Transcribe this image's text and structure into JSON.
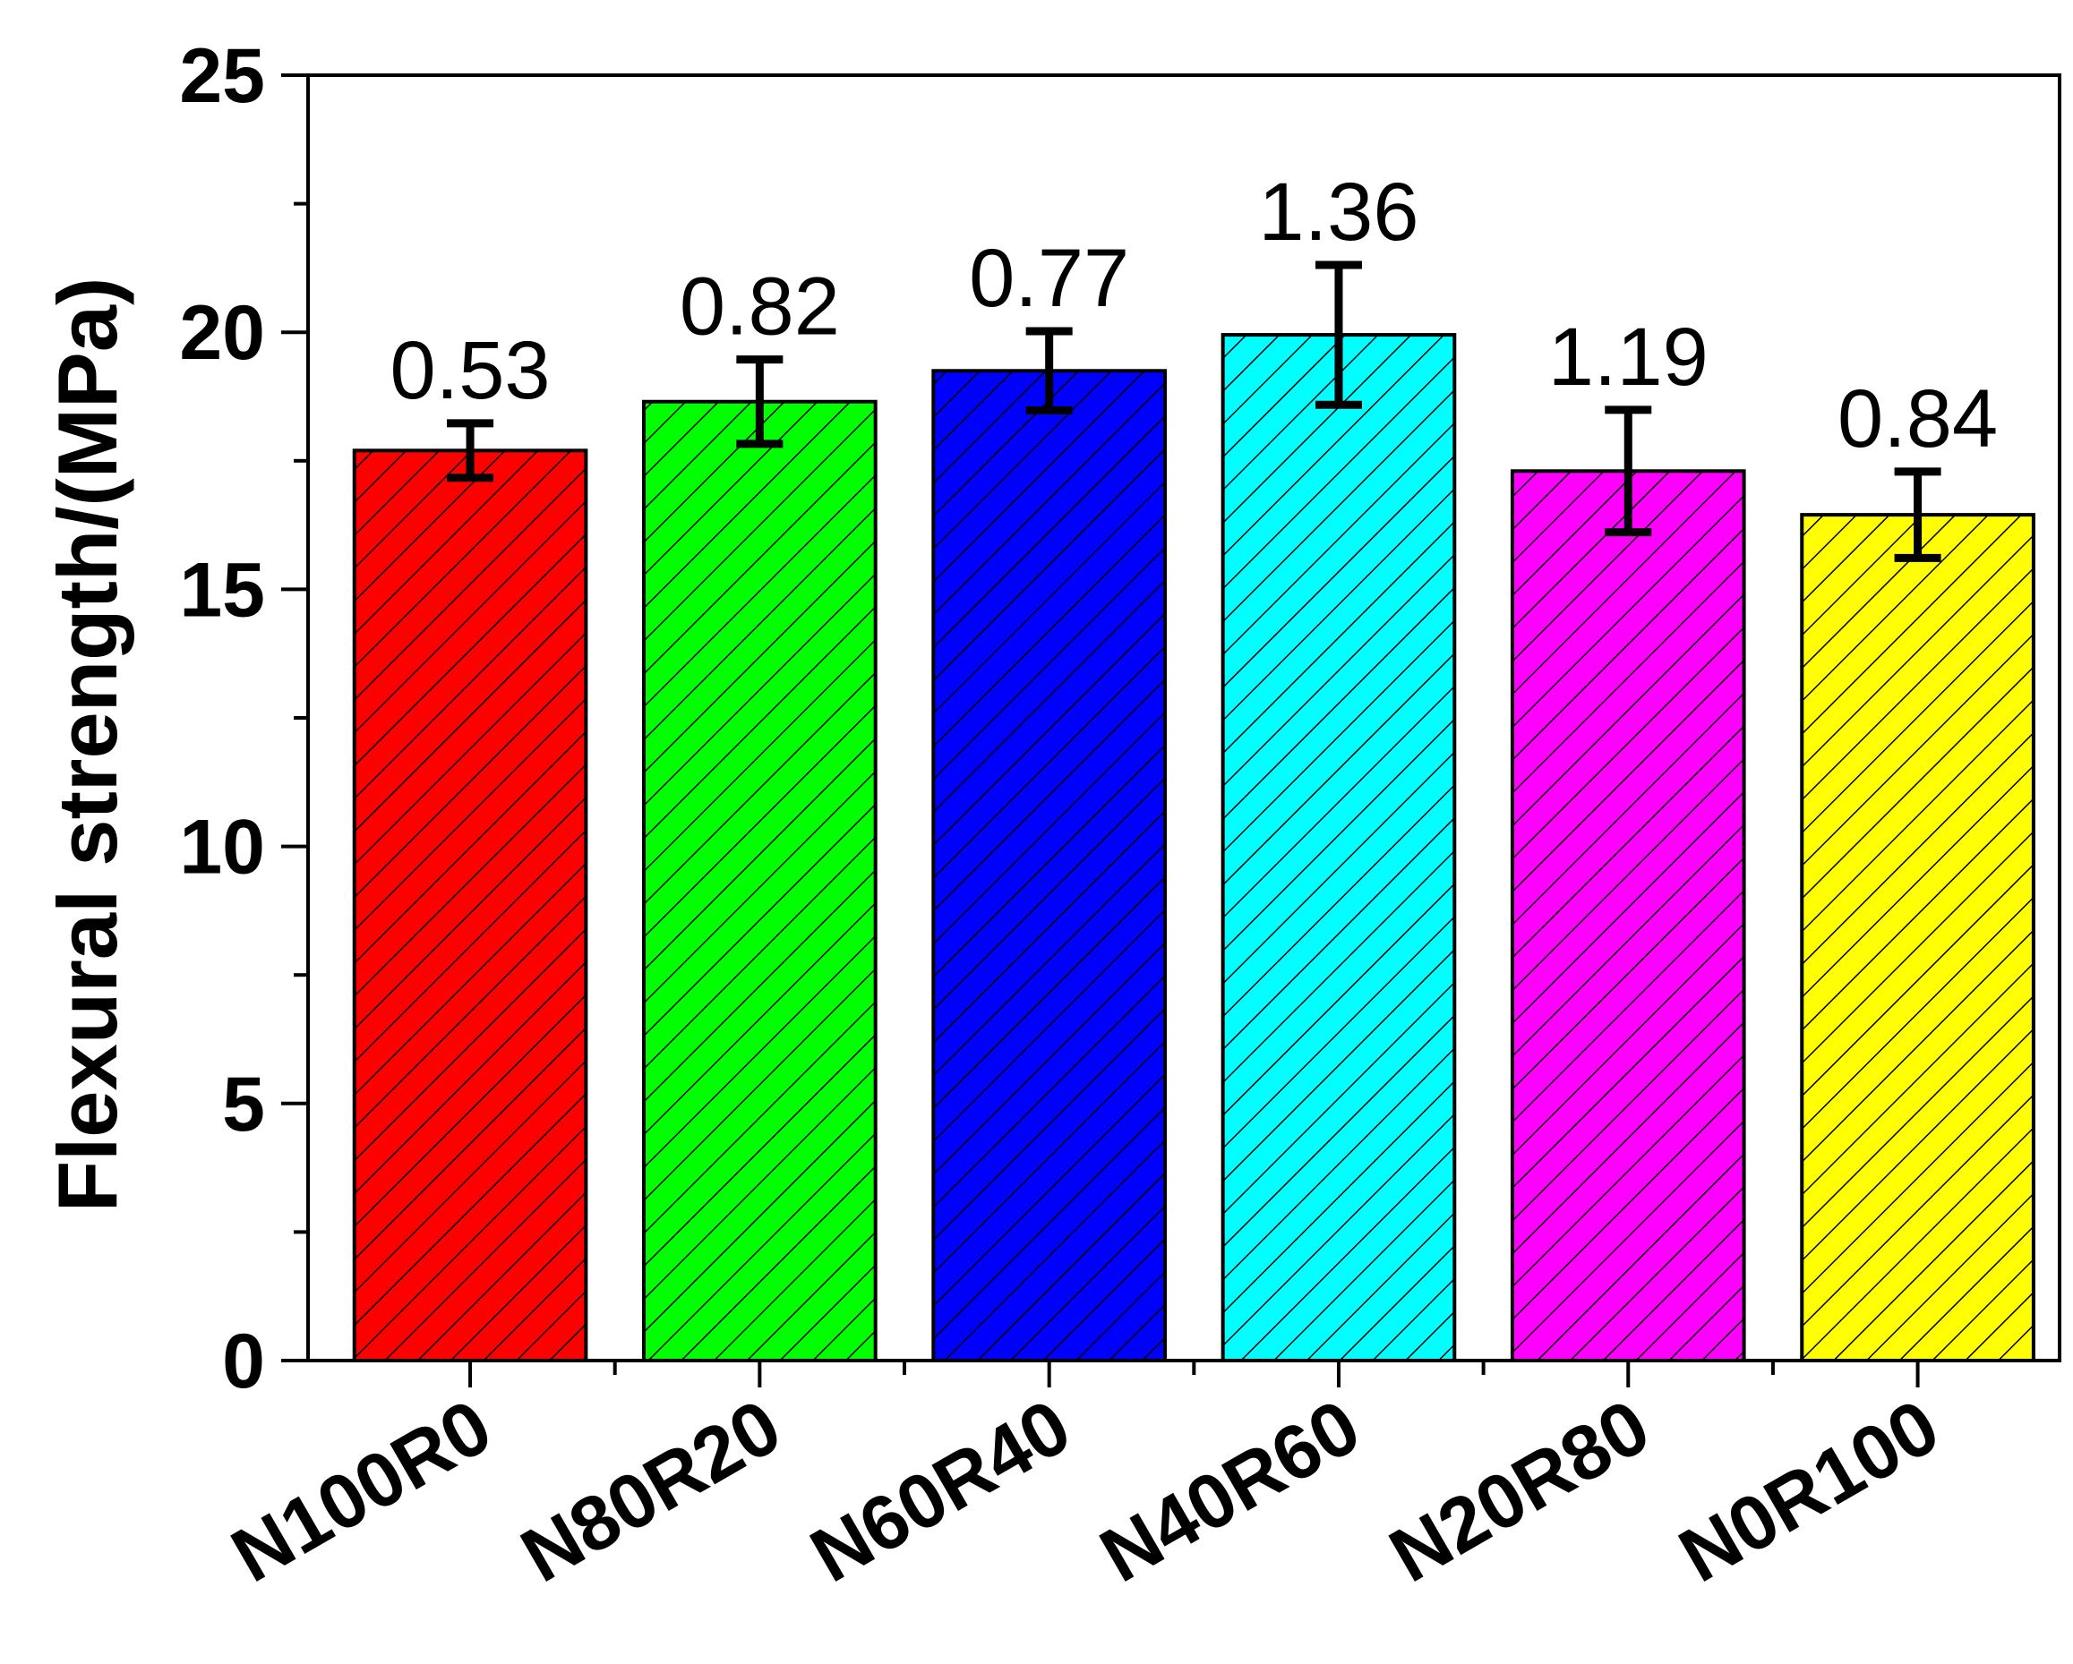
{
  "chart_data": {
    "type": "bar",
    "title": "",
    "xlabel": "",
    "ylabel": "Flexural strength/(MPa)",
    "ylim": [
      0,
      25
    ],
    "yticks_major": [
      0,
      5,
      10,
      15,
      20,
      25
    ],
    "yticks_minor_step": 2.5,
    "grid": false,
    "categories": [
      "N100R0",
      "N80R20",
      "N60R40",
      "N40R60",
      "N20R80",
      "N0R100"
    ],
    "values": [
      17.7,
      18.65,
      19.25,
      19.95,
      17.3,
      16.45
    ],
    "errors": [
      0.53,
      0.82,
      0.77,
      1.36,
      1.19,
      0.84
    ],
    "error_labels": [
      "0.53",
      "0.82",
      "0.77",
      "1.36",
      "1.19",
      "0.84"
    ],
    "colors": [
      "#ff0000",
      "#00ff00",
      "#0000ff",
      "#00ffff",
      "#ff00ff",
      "#ffff00"
    ],
    "fill_pattern": "diagonal-hatch"
  }
}
